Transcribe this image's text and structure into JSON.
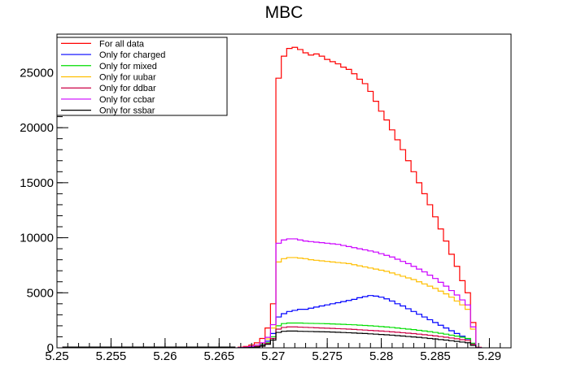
{
  "chart_data": {
    "type": "line",
    "title": "MBC",
    "xlabel": "",
    "ylabel": "",
    "xlim": [
      5.25,
      5.292
    ],
    "ylim": [
      0,
      28500
    ],
    "x_ticks": [
      "5.25",
      "5.255",
      "5.26",
      "5.265",
      "5.27",
      "5.275",
      "5.28",
      "5.285",
      "5.29"
    ],
    "y_ticks": [
      "0",
      "5000",
      "10000",
      "15000",
      "20000",
      "25000"
    ],
    "grid": false,
    "legend_position": "top-left",
    "x": [
      5.267,
      5.2675,
      5.268,
      5.2685,
      5.269,
      5.2695,
      5.27,
      5.2705,
      5.271,
      5.2715,
      5.272,
      5.2725,
      5.273,
      5.2735,
      5.274,
      5.2745,
      5.275,
      5.2755,
      5.276,
      5.2765,
      5.277,
      5.2775,
      5.278,
      5.2785,
      5.279,
      5.2795,
      5.28,
      5.2805,
      5.281,
      5.2815,
      5.282,
      5.2825,
      5.283,
      5.2835,
      5.284,
      5.2845,
      5.285,
      5.2855,
      5.286,
      5.2865,
      5.287,
      5.2875,
      5.288,
      5.2885,
      5.289
    ],
    "series": [
      {
        "name": "For all data",
        "color": "#ff0000",
        "values": [
          60,
          120,
          250,
          450,
          850,
          1800,
          4000,
          24500,
          26500,
          27200,
          27300,
          27100,
          26800,
          26600,
          26700,
          26500,
          26200,
          26000,
          25800,
          25500,
          25300,
          24900,
          24400,
          24000,
          23300,
          22400,
          21500,
          20700,
          19800,
          18900,
          18000,
          17000,
          16000,
          15000,
          14000,
          13000,
          11900,
          10800,
          9700,
          8500,
          7400,
          6100,
          5000,
          2300,
          50
        ]
      },
      {
        "name": "Only for charged",
        "color": "#0000ff",
        "values": [
          20,
          40,
          80,
          150,
          280,
          600,
          1300,
          2800,
          3100,
          3300,
          3400,
          3500,
          3500,
          3600,
          3700,
          3800,
          3900,
          4000,
          4100,
          4200,
          4300,
          4400,
          4550,
          4650,
          4750,
          4700,
          4600,
          4450,
          4250,
          4000,
          3800,
          3550,
          3300,
          3050,
          2800,
          2550,
          2300,
          2050,
          1800,
          1550,
          1300,
          1050,
          800,
          400,
          10
        ]
      },
      {
        "name": "Only for mixed",
        "color": "#00dd00",
        "values": [
          15,
          30,
          60,
          120,
          220,
          450,
          1000,
          2000,
          2200,
          2250,
          2250,
          2250,
          2230,
          2220,
          2210,
          2200,
          2190,
          2170,
          2150,
          2130,
          2110,
          2090,
          2060,
          2030,
          2000,
          1970,
          1930,
          1890,
          1850,
          1800,
          1750,
          1700,
          1650,
          1590,
          1530,
          1470,
          1400,
          1320,
          1240,
          1150,
          1060,
          960,
          850,
          420,
          10
        ]
      },
      {
        "name": "Only for uubar",
        "color": "#ffbf00",
        "values": [
          25,
          50,
          100,
          200,
          380,
          800,
          1800,
          7800,
          8100,
          8200,
          8200,
          8150,
          8100,
          8000,
          7950,
          7900,
          7850,
          7800,
          7750,
          7700,
          7650,
          7550,
          7450,
          7350,
          7250,
          7150,
          7050,
          6950,
          6800,
          6650,
          6500,
          6350,
          6200,
          6000,
          5800,
          5600,
          5400,
          5150,
          4900,
          4600,
          4250,
          3900,
          3500,
          1700,
          20
        ]
      },
      {
        "name": "Only for ddbar",
        "color": "#cc0044",
        "values": [
          10,
          25,
          50,
          100,
          180,
          380,
          850,
          1700,
          1850,
          1900,
          1900,
          1880,
          1860,
          1840,
          1820,
          1800,
          1780,
          1760,
          1740,
          1720,
          1700,
          1670,
          1640,
          1610,
          1580,
          1550,
          1520,
          1490,
          1450,
          1410,
          1370,
          1330,
          1290,
          1240,
          1190,
          1140,
          1080,
          1020,
          960,
          890,
          820,
          740,
          660,
          320,
          10
        ]
      },
      {
        "name": "Only for ccbar",
        "color": "#cc00ff",
        "values": [
          30,
          60,
          120,
          240,
          450,
          950,
          2100,
          9500,
          9800,
          9900,
          9900,
          9800,
          9700,
          9650,
          9600,
          9550,
          9500,
          9450,
          9400,
          9300,
          9200,
          9100,
          9000,
          8900,
          8800,
          8700,
          8550,
          8400,
          8250,
          8050,
          7850,
          7650,
          7400,
          7150,
          6900,
          6600,
          6300,
          5950,
          5600,
          5200,
          4800,
          4350,
          3900,
          1900,
          20
        ]
      },
      {
        "name": "Only for ssbar",
        "color": "#000000",
        "values": [
          8,
          18,
          40,
          80,
          150,
          320,
          700,
          1400,
          1500,
          1520,
          1520,
          1500,
          1490,
          1480,
          1470,
          1460,
          1450,
          1430,
          1410,
          1390,
          1370,
          1350,
          1320,
          1300,
          1270,
          1240,
          1210,
          1180,
          1150,
          1110,
          1070,
          1030,
          990,
          950,
          900,
          850,
          800,
          750,
          700,
          640,
          580,
          520,
          460,
          220,
          5
        ]
      }
    ]
  }
}
